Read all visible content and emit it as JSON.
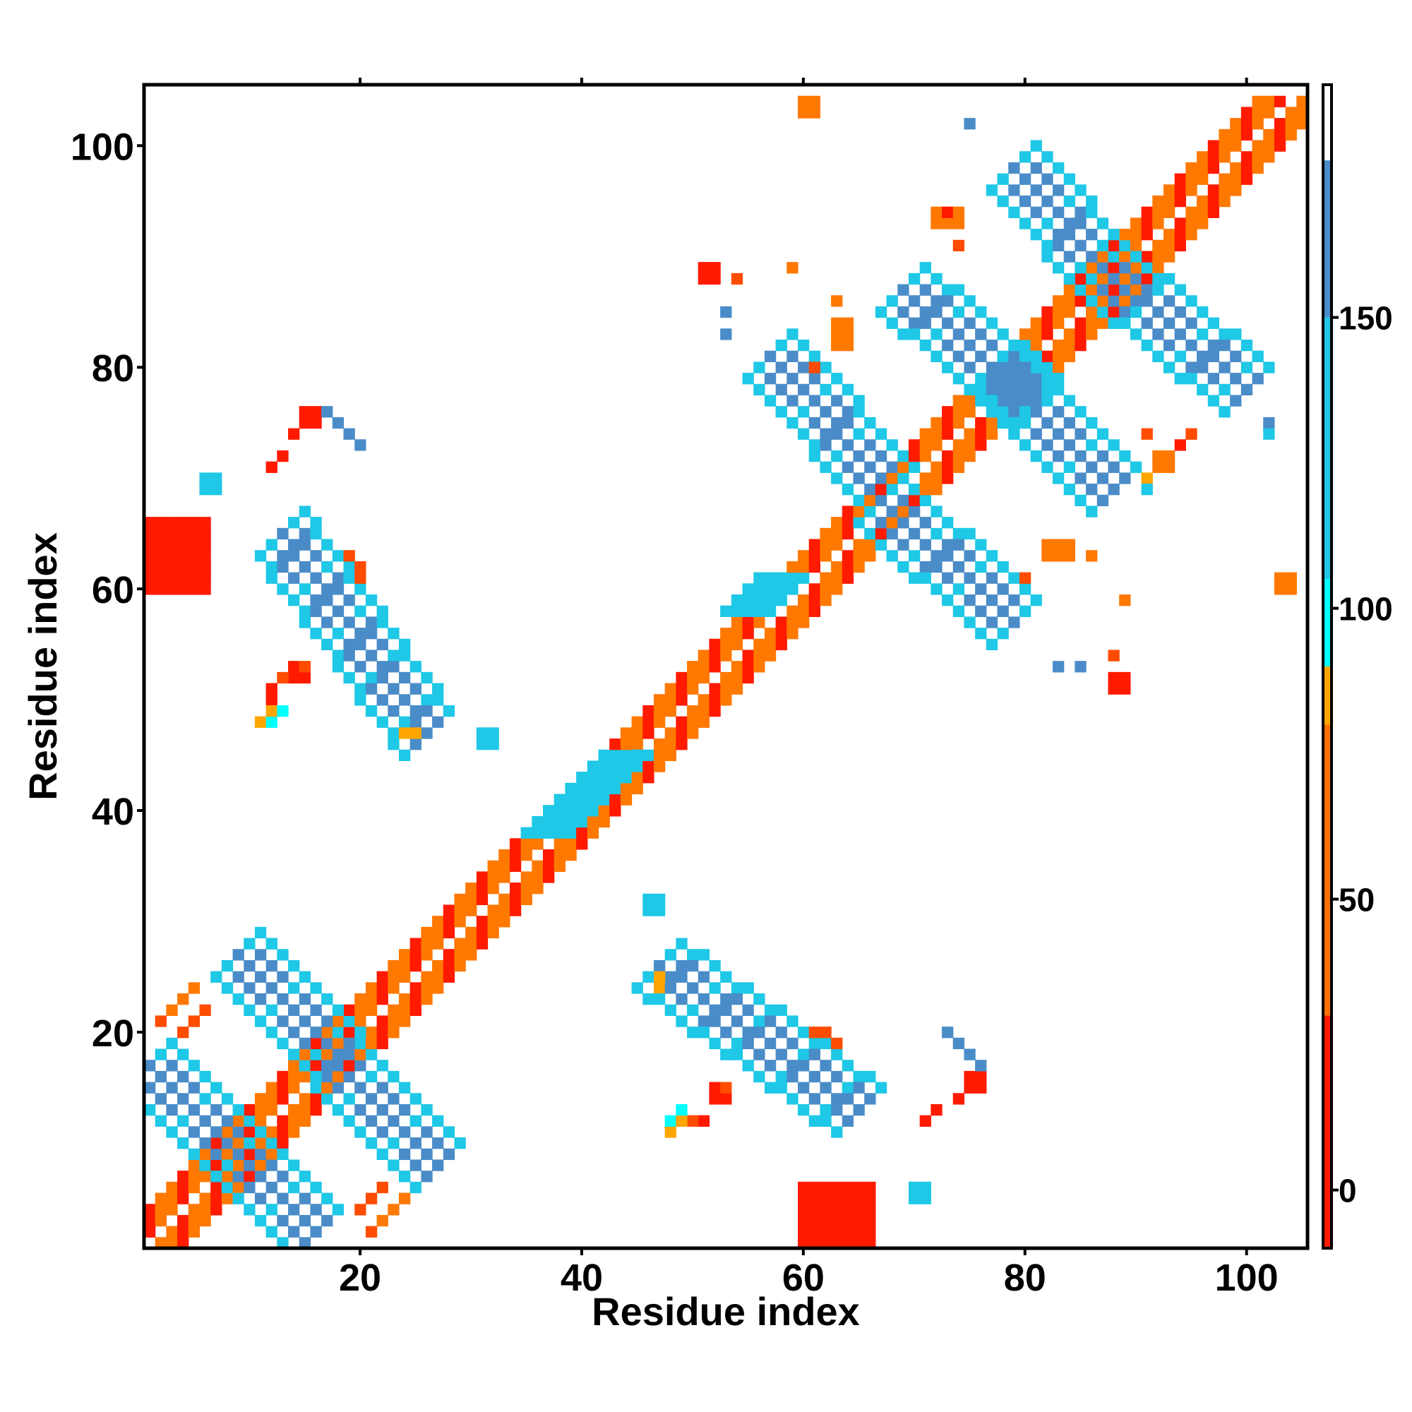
{
  "chart_data": {
    "type": "heatmap",
    "title": "",
    "xlabel": "Residue index",
    "ylabel": "Residue index",
    "xlim": [
      1,
      105
    ],
    "ylim": [
      1,
      105
    ],
    "x_ticks": [
      20,
      40,
      60,
      80,
      100
    ],
    "y_ticks": [
      20,
      40,
      60,
      80,
      100
    ],
    "x_tick_labels": [
      "20",
      "40",
      "60",
      "80",
      "100"
    ],
    "y_tick_labels": [
      "20",
      "40",
      "60",
      "80",
      "100"
    ],
    "colorbar": {
      "range": [
        -10,
        190
      ],
      "ticks": [
        0,
        50,
        100,
        150
      ],
      "tick_labels": [
        "0",
        "50",
        "100",
        "150"
      ],
      "stops": [
        {
          "from": -10,
          "to": 30,
          "color": "#ff1a00"
        },
        {
          "from": 30,
          "to": 80,
          "color": "#ff7000"
        },
        {
          "from": 80,
          "to": 90,
          "color": "#ffa500"
        },
        {
          "from": 90,
          "to": 105,
          "color": "#00ffff"
        },
        {
          "from": 105,
          "to": 150,
          "color": "#1ec8e6"
        },
        {
          "from": 150,
          "to": 177,
          "color": "#4a8cc8"
        },
        {
          "from": 177,
          "to": 190,
          "color": "#ffffff"
        }
      ]
    },
    "palette": {
      "red": "#ff1a00",
      "orange_red": "#ff4c00",
      "orange": "#ff7800",
      "amber": "#ffa500",
      "cyan": "#00ffff",
      "sky": "#1ec8e6",
      "steel": "#4a8cc8"
    },
    "regions": [
      {
        "type": "diag",
        "x0": 1,
        "y0": 1,
        "x1": 104,
        "y1": 104,
        "half_width": 3,
        "color": "orange",
        "alt_color": "red"
      },
      {
        "type": "diag",
        "x0": 37,
        "y0": 38,
        "x1": 44,
        "y1": 45,
        "half_width": 2,
        "color": "sky"
      },
      {
        "type": "diag",
        "x0": 55,
        "y0": 58,
        "x1": 58,
        "y1": 61,
        "half_width": 2,
        "color": "sky"
      },
      {
        "type": "anti",
        "x0": 1,
        "y0": 17,
        "x1": 16,
        "y1": 2,
        "half_width": 2,
        "color": "steel",
        "alt_color": "sky"
      },
      {
        "type": "anti",
        "x0": 9,
        "y0": 27,
        "x1": 27,
        "y1": 8,
        "half_width": 2,
        "color": "steel",
        "alt_color": "sky"
      },
      {
        "type": "anti",
        "x0": 13,
        "y0": 65,
        "x1": 26,
        "y1": 47,
        "half_width": 2,
        "color": "steel",
        "alt_color": "sky"
      },
      {
        "type": "anti",
        "x0": 47,
        "y0": 26,
        "x1": 65,
        "y1": 13,
        "half_width": 2,
        "color": "steel",
        "alt_color": "sky"
      },
      {
        "type": "anti",
        "x0": 57,
        "y0": 81,
        "x1": 68,
        "y1": 69,
        "half_width": 2,
        "color": "steel",
        "alt_color": "sky"
      },
      {
        "type": "anti",
        "x0": 67,
        "y0": 68,
        "x1": 79,
        "y1": 57,
        "half_width": 2,
        "color": "steel",
        "alt_color": "sky"
      },
      {
        "type": "anti",
        "x0": 69,
        "y0": 87,
        "x1": 81,
        "y1": 77,
        "half_width": 2,
        "color": "steel",
        "alt_color": "sky"
      },
      {
        "type": "anti",
        "x0": 77,
        "y0": 80,
        "x1": 88,
        "y1": 69,
        "half_width": 2,
        "color": "steel",
        "alt_color": "sky"
      },
      {
        "type": "anti",
        "x0": 79,
        "y0": 98,
        "x1": 88,
        "y1": 88,
        "half_width": 2,
        "color": "steel",
        "alt_color": "sky"
      },
      {
        "type": "anti",
        "x0": 87,
        "y0": 89,
        "x1": 100,
        "y1": 78,
        "half_width": 2,
        "color": "steel",
        "alt_color": "sky"
      },
      {
        "type": "block",
        "x0": 1,
        "y0": 60,
        "x1": 6,
        "y1": 66,
        "color": "red"
      },
      {
        "type": "block",
        "x0": 60,
        "y0": 1,
        "x1": 66,
        "y1": 6,
        "color": "red"
      },
      {
        "type": "block",
        "x0": 46,
        "y0": 31,
        "x1": 47,
        "y1": 32,
        "color": "sky"
      },
      {
        "type": "block",
        "x0": 31,
        "y0": 46,
        "x1": 32,
        "y1": 47,
        "color": "sky"
      },
      {
        "type": "block",
        "x0": 70,
        "y0": 5,
        "x1": 71,
        "y1": 6,
        "color": "sky"
      },
      {
        "type": "block",
        "x0": 6,
        "y0": 69,
        "x1": 7,
        "y1": 70,
        "color": "sky"
      },
      {
        "type": "block",
        "x0": 52,
        "y0": 14,
        "x1": 53,
        "y1": 15,
        "color": "red"
      },
      {
        "type": "block",
        "x0": 14,
        "y0": 52,
        "x1": 15,
        "y1": 53,
        "color": "red"
      },
      {
        "type": "block",
        "x0": 75,
        "y0": 15,
        "x1": 76,
        "y1": 16,
        "color": "red"
      },
      {
        "type": "block",
        "x0": 15,
        "y0": 75,
        "x1": 16,
        "y1": 76,
        "color": "red"
      },
      {
        "type": "block",
        "x0": 51,
        "y0": 88,
        "x1": 52,
        "y1": 89,
        "color": "red"
      },
      {
        "type": "block",
        "x0": 88,
        "y0": 51,
        "x1": 89,
        "y1": 52,
        "color": "red"
      },
      {
        "type": "block",
        "x0": 60,
        "y0": 103,
        "x1": 61,
        "y1": 104,
        "color": "orange"
      },
      {
        "type": "block",
        "x0": 103,
        "y0": 60,
        "x1": 104,
        "y1": 61,
        "color": "orange"
      },
      {
        "type": "block",
        "x0": 63,
        "y0": 82,
        "x1": 64,
        "y1": 84,
        "color": "orange"
      },
      {
        "type": "block",
        "x0": 82,
        "y0": 63,
        "x1": 84,
        "y1": 64,
        "color": "orange"
      },
      {
        "type": "block",
        "x0": 72,
        "y0": 93,
        "x1": 74,
        "y1": 94,
        "color": "orange"
      },
      {
        "type": "block",
        "x0": 92,
        "y0": 71,
        "x1": 93,
        "y1": 72,
        "color": "orange"
      }
    ],
    "dots": [
      {
        "x": 3,
        "y": 22,
        "color": "orange"
      },
      {
        "x": 4,
        "y": 23,
        "color": "orange"
      },
      {
        "x": 5,
        "y": 24,
        "color": "orange"
      },
      {
        "x": 2,
        "y": 21,
        "color": "orange_red"
      },
      {
        "x": 22,
        "y": 3,
        "color": "orange"
      },
      {
        "x": 23,
        "y": 4,
        "color": "orange"
      },
      {
        "x": 24,
        "y": 5,
        "color": "orange"
      },
      {
        "x": 21,
        "y": 2,
        "color": "orange_red"
      },
      {
        "x": 12,
        "y": 51,
        "color": "red"
      },
      {
        "x": 13,
        "y": 52,
        "color": "orange_red"
      },
      {
        "x": 12,
        "y": 50,
        "color": "red"
      },
      {
        "x": 51,
        "y": 12,
        "color": "red"
      },
      {
        "x": 50,
        "y": 12,
        "color": "orange_red"
      },
      {
        "x": 11,
        "y": 48,
        "color": "amber"
      },
      {
        "x": 12,
        "y": 48,
        "color": "cyan"
      },
      {
        "x": 48,
        "y": 11,
        "color": "amber"
      },
      {
        "x": 48,
        "y": 12,
        "color": "cyan"
      },
      {
        "x": 14,
        "y": 74,
        "color": "red"
      },
      {
        "x": 15,
        "y": 75,
        "color": "red"
      },
      {
        "x": 12,
        "y": 71,
        "color": "red"
      },
      {
        "x": 74,
        "y": 14,
        "color": "red"
      },
      {
        "x": 71,
        "y": 12,
        "color": "red"
      },
      {
        "x": 18,
        "y": 75,
        "color": "steel"
      },
      {
        "x": 20,
        "y": 73,
        "color": "steel"
      },
      {
        "x": 75,
        "y": 18,
        "color": "steel"
      },
      {
        "x": 73,
        "y": 20,
        "color": "steel"
      },
      {
        "x": 20,
        "y": 62,
        "color": "orange_red"
      },
      {
        "x": 62,
        "y": 20,
        "color": "orange_red"
      },
      {
        "x": 59,
        "y": 89,
        "color": "orange"
      },
      {
        "x": 61,
        "y": 80,
        "color": "orange_red"
      },
      {
        "x": 89,
        "y": 59,
        "color": "orange"
      },
      {
        "x": 80,
        "y": 61,
        "color": "orange_red"
      },
      {
        "x": 54,
        "y": 88,
        "color": "orange_red"
      },
      {
        "x": 88,
        "y": 54,
        "color": "orange_red"
      },
      {
        "x": 53,
        "y": 83,
        "color": "steel"
      },
      {
        "x": 83,
        "y": 53,
        "color": "steel"
      },
      {
        "x": 75,
        "y": 102,
        "color": "steel"
      },
      {
        "x": 102,
        "y": 75,
        "color": "steel"
      },
      {
        "x": 91,
        "y": 74,
        "color": "orange_red"
      },
      {
        "x": 74,
        "y": 91,
        "color": "orange_red"
      },
      {
        "x": 94,
        "y": 73,
        "color": "red"
      },
      {
        "x": 95,
        "y": 74,
        "color": "orange_red"
      },
      {
        "x": 73,
        "y": 94,
        "color": "red"
      },
      {
        "x": 102,
        "y": 74,
        "color": "sky"
      },
      {
        "x": 91,
        "y": 70,
        "color": "amber"
      },
      {
        "x": 91,
        "y": 69,
        "color": "sky"
      },
      {
        "x": 85,
        "y": 53,
        "color": "steel"
      },
      {
        "x": 53,
        "y": 85,
        "color": "steel"
      },
      {
        "x": 84,
        "y": 64,
        "color": "orange"
      },
      {
        "x": 86,
        "y": 63,
        "color": "orange"
      },
      {
        "x": 64,
        "y": 84,
        "color": "orange"
      },
      {
        "x": 63,
        "y": 86,
        "color": "orange"
      },
      {
        "x": 61,
        "y": 20,
        "color": "orange_red"
      },
      {
        "x": 63,
        "y": 19,
        "color": "orange_red"
      },
      {
        "x": 20,
        "y": 61,
        "color": "orange_red"
      },
      {
        "x": 19,
        "y": 63,
        "color": "orange_red"
      },
      {
        "x": 74,
        "y": 19,
        "color": "steel"
      },
      {
        "x": 76,
        "y": 17,
        "color": "steel"
      },
      {
        "x": 19,
        "y": 74,
        "color": "steel"
      },
      {
        "x": 17,
        "y": 76,
        "color": "steel"
      },
      {
        "x": 72,
        "y": 13,
        "color": "red"
      },
      {
        "x": 13,
        "y": 72,
        "color": "red"
      },
      {
        "x": 76,
        "y": 16,
        "color": "red"
      },
      {
        "x": 16,
        "y": 76,
        "color": "red"
      },
      {
        "x": 49,
        "y": 12,
        "color": "amber"
      },
      {
        "x": 49,
        "y": 13,
        "color": "cyan"
      },
      {
        "x": 12,
        "y": 49,
        "color": "amber"
      },
      {
        "x": 13,
        "y": 49,
        "color": "cyan"
      },
      {
        "x": 53,
        "y": 15,
        "color": "orange_red"
      },
      {
        "x": 15,
        "y": 53,
        "color": "orange_red"
      },
      {
        "x": 21,
        "y": 5,
        "color": "orange_red"
      },
      {
        "x": 22,
        "y": 6,
        "color": "orange_red"
      },
      {
        "x": 20,
        "y": 4,
        "color": "orange_red"
      },
      {
        "x": 5,
        "y": 21,
        "color": "orange_red"
      },
      {
        "x": 6,
        "y": 22,
        "color": "orange_red"
      },
      {
        "x": 4,
        "y": 20,
        "color": "orange_red"
      },
      {
        "x": 47,
        "y": 24,
        "color": "amber"
      },
      {
        "x": 24,
        "y": 47,
        "color": "amber"
      },
      {
        "x": 25,
        "y": 47,
        "color": "amber"
      },
      {
        "x": 47,
        "y": 25,
        "color": "amber"
      },
      {
        "x": 61,
        "y": 19,
        "color": "sky"
      },
      {
        "x": 19,
        "y": 61,
        "color": "sky"
      }
    ]
  }
}
